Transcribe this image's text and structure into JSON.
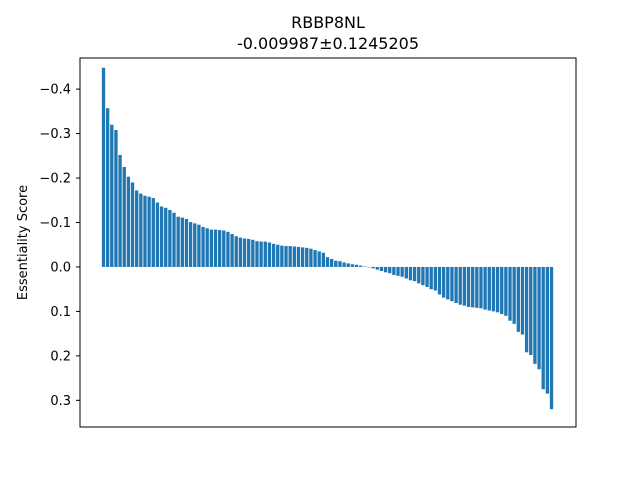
{
  "chart_data": {
    "type": "bar",
    "title": "RBBP8NL",
    "subtitle": "-0.009987±0.1245205",
    "xlabel": "",
    "ylabel": "Essentiality Score",
    "y_inverted": true,
    "ylim": [
      0.36,
      -0.47
    ],
    "yticks": [
      -0.4,
      -0.3,
      -0.2,
      -0.1,
      0.0,
      0.1,
      0.2,
      0.3
    ],
    "ytick_labels": [
      "−0.4",
      "−0.3",
      "−0.2",
      "−0.1",
      "0.0",
      "0.1",
      "0.2",
      "0.3"
    ],
    "grid": false,
    "legend": "none",
    "bar_color": "#1f77b4",
    "values": [
      -0.448,
      -0.357,
      -0.32,
      -0.308,
      -0.252,
      -0.225,
      -0.203,
      -0.19,
      -0.172,
      -0.165,
      -0.16,
      -0.158,
      -0.155,
      -0.145,
      -0.136,
      -0.133,
      -0.128,
      -0.122,
      -0.113,
      -0.111,
      -0.108,
      -0.101,
      -0.098,
      -0.095,
      -0.09,
      -0.087,
      -0.084,
      -0.084,
      -0.083,
      -0.082,
      -0.079,
      -0.074,
      -0.069,
      -0.066,
      -0.064,
      -0.063,
      -0.061,
      -0.058,
      -0.057,
      -0.057,
      -0.055,
      -0.052,
      -0.05,
      -0.048,
      -0.047,
      -0.047,
      -0.046,
      -0.045,
      -0.044,
      -0.043,
      -0.041,
      -0.038,
      -0.035,
      -0.032,
      -0.022,
      -0.018,
      -0.014,
      -0.013,
      -0.01,
      -0.008,
      -0.006,
      -0.005,
      -0.003,
      -0.001,
      0.001,
      0.003,
      0.006,
      0.009,
      0.012,
      0.014,
      0.018,
      0.02,
      0.022,
      0.026,
      0.03,
      0.032,
      0.037,
      0.041,
      0.045,
      0.05,
      0.053,
      0.062,
      0.069,
      0.073,
      0.077,
      0.081,
      0.085,
      0.087,
      0.09,
      0.091,
      0.092,
      0.093,
      0.096,
      0.098,
      0.1,
      0.102,
      0.106,
      0.11,
      0.121,
      0.128,
      0.146,
      0.152,
      0.192,
      0.198,
      0.218,
      0.23,
      0.275,
      0.285,
      0.32
    ]
  }
}
